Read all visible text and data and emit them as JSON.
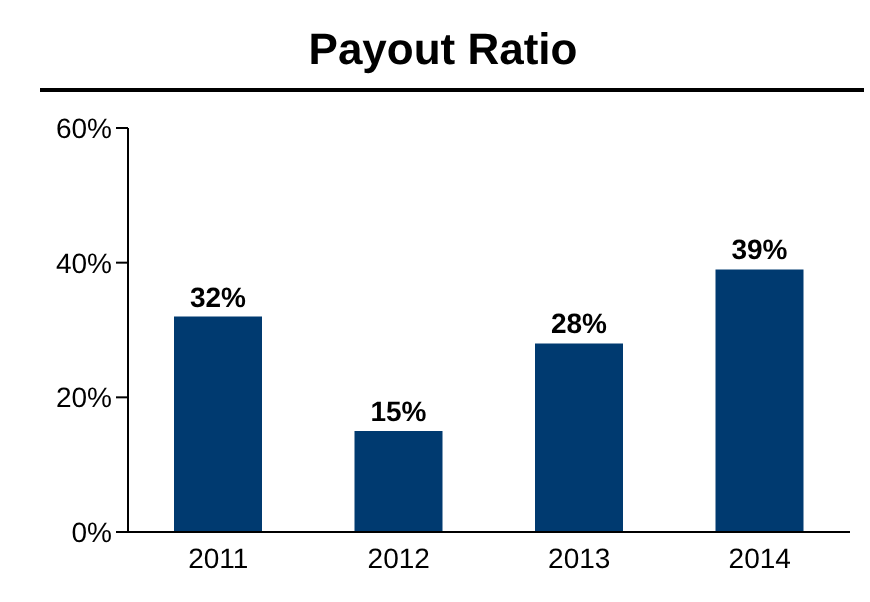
{
  "chart_data": {
    "type": "bar",
    "title": "Payout Ratio",
    "categories": [
      "2011",
      "2012",
      "2013",
      "2014"
    ],
    "values": [
      32,
      15,
      28,
      39
    ],
    "value_labels": [
      "32%",
      "15%",
      "28%",
      "39%"
    ],
    "color": "#003a70",
    "ylim": [
      0,
      60
    ],
    "yticks": [
      {
        "value": 0,
        "label": "0%"
      },
      {
        "value": 20,
        "label": "20%"
      },
      {
        "value": 40,
        "label": "40%"
      },
      {
        "value": 60,
        "label": "60%"
      }
    ],
    "grid": false,
    "legend": false
  }
}
